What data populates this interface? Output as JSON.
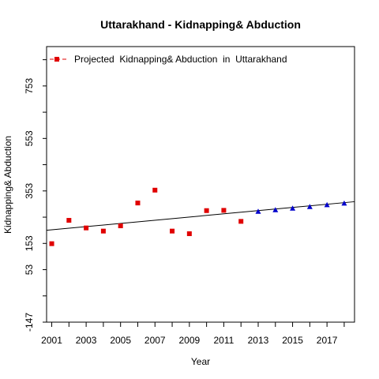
{
  "chart_data": {
    "type": "scatter",
    "title": "Uttarakhand  -  Kidnapping& Abduction",
    "xlabel": "Year",
    "ylabel": "Kidnapping& Abduction",
    "xlim": [
      2000.7,
      2018.6
    ],
    "ylim": [
      -147,
      903
    ],
    "x_ticks": [
      "2001",
      "2003",
      "2005",
      "2007",
      "2009",
      "2011",
      "2013",
      "2015",
      "2017"
    ],
    "y_ticks": [
      "-147",
      "53",
      "153",
      "353",
      "553",
      "753"
    ],
    "legend": {
      "position": "top-left",
      "label": "Projected  Kidnapping& Abduction  in  Uttarakhand"
    },
    "series": [
      {
        "marker": "square",
        "color": "#e00000",
        "x": [
          2001,
          2002,
          2003,
          2004,
          2005,
          2006,
          2007,
          2008,
          2009,
          2010,
          2011,
          2012
        ],
        "y": [
          152,
          241,
          212,
          200,
          220,
          307,
          356,
          200,
          190,
          278,
          279,
          237
        ]
      },
      {
        "marker": "triangle",
        "color": "#0000cc",
        "x": [
          2013,
          2014,
          2015,
          2016,
          2017,
          2018
        ],
        "y": [
          275,
          281,
          287,
          293,
          300,
          306
        ]
      }
    ],
    "trend_line": {
      "x": [
        2000.7,
        2018.6
      ],
      "y": [
        203,
        312
      ],
      "color": "#000000"
    }
  }
}
